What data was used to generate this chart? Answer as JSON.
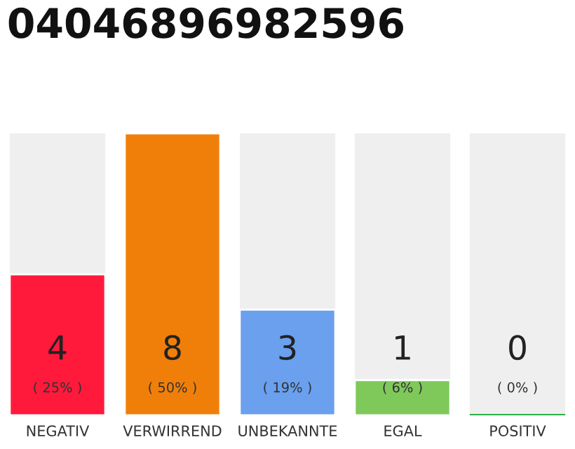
{
  "chart_data": {
    "type": "bar",
    "title": "04046896982596",
    "ylim": [
      0,
      8
    ],
    "tick_labels": "x",
    "categories": [
      "NEGATIV",
      "VERWIRREND",
      "UNBEKANNTE",
      "EGAL",
      "POSITIV"
    ],
    "values": [
      4,
      8,
      3,
      1,
      0
    ],
    "colors": [
      "#ff1a3c",
      "#f07f0a",
      "#6aa0ee",
      "#7ec95a",
      "#2cb04a"
    ],
    "value_labels": [
      "4\n( 25% )",
      "8\n( 50% )",
      "3\n( 19% )",
      "1\n( 6% )",
      "0\n( 0% )"
    ],
    "grid": false,
    "legend": false
  }
}
